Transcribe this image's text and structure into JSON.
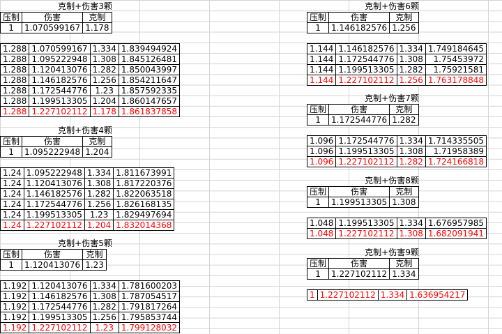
{
  "blocks": [
    {
      "title": "克制+伤害3颗",
      "headers": [
        "压制",
        "伤害",
        "克制"
      ],
      "first": [
        "1",
        "1.070599167",
        "1.178"
      ],
      "rows": [
        [
          "1.288",
          "1.070599167",
          "1.334",
          "1.839494924"
        ],
        [
          "1.288",
          "1.095222948",
          "1.308",
          "1.845126481"
        ],
        [
          "1.288",
          "1.120413076",
          "1.282",
          "1.850043997"
        ],
        [
          "1.288",
          "1.146182576",
          "1.256",
          "1.854211647"
        ],
        [
          "1.288",
          "1.172544776",
          "1.23",
          "1.857592335"
        ],
        [
          "1.288",
          "1.199513305",
          "1.204",
          "1.860147657"
        ],
        [
          "1.288",
          "1.227102112",
          "1.178",
          "1.861837858"
        ]
      ]
    },
    {
      "title": "克制+伤害4颗",
      "headers": [
        "压制",
        "伤害",
        "克制"
      ],
      "first": [
        "1",
        "1.095222948",
        "1.204"
      ],
      "rows": [
        [
          "1.24",
          "1.095222948",
          "1.334",
          "1.811673991"
        ],
        [
          "1.24",
          "1.120413076",
          "1.308",
          "1.817220376"
        ],
        [
          "1.24",
          "1.146182576",
          "1.282",
          "1.822063518"
        ],
        [
          "1.24",
          "1.172544776",
          "1.256",
          "1.826168135"
        ],
        [
          "1.24",
          "1.199513305",
          "1.23",
          "1.829497694"
        ],
        [
          "1.24",
          "1.227102112",
          "1.204",
          "1.832014368"
        ]
      ]
    },
    {
      "title": "克制+伤害5颗",
      "headers": [
        "压制",
        "伤害",
        "克制"
      ],
      "first": [
        "1",
        "1.120413076",
        "1.23"
      ],
      "rows": [
        [
          "1.192",
          "1.120413076",
          "1.334",
          "1.781600203"
        ],
        [
          "1.192",
          "1.146182576",
          "1.308",
          "1.787054517"
        ],
        [
          "1.192",
          "1.172544776",
          "1.282",
          "1.791817264"
        ],
        [
          "1.192",
          "1.199513305",
          "1.256",
          "1.795853744"
        ],
        [
          "1.192",
          "1.227102112",
          "1.23",
          "1.799128032"
        ]
      ]
    },
    {
      "title": "克制+伤害6颗",
      "headers": [
        "压制",
        "伤害",
        "克制"
      ],
      "first": [
        "1",
        "1.146182576",
        "1.256"
      ],
      "rows": [
        [
          "1.144",
          "1.146182576",
          "1.334",
          "1.749184645"
        ],
        [
          "1.144",
          "1.172544776",
          "1.308",
          "1.75453972"
        ],
        [
          "1.144",
          "1.199513305",
          "1.282",
          "1.75921581"
        ],
        [
          "1.144",
          "1.227102112",
          "1.256",
          "1.763178848"
        ]
      ]
    },
    {
      "title": "克制+伤害7颗",
      "headers": [
        "压制",
        "伤害",
        "克制"
      ],
      "first": [
        "1",
        "1.172544776",
        "1.282"
      ],
      "rows": [
        [
          "1.096",
          "1.172544776",
          "1.334",
          "1.714335505"
        ],
        [
          "1.096",
          "1.199513305",
          "1.308",
          "1.71958389"
        ],
        [
          "1.096",
          "1.227102112",
          "1.282",
          "1.724166818"
        ]
      ]
    },
    {
      "title": "克制+伤害8颗",
      "headers": [
        "压制",
        "伤害",
        "克制"
      ],
      "first": [
        "1",
        "1.199513305",
        "1.308"
      ],
      "rows": [
        [
          "1.048",
          "1.199513305",
          "1.334",
          "1.676957985"
        ],
        [
          "1.048",
          "1.227102112",
          "1.308",
          "1.682091941"
        ]
      ]
    },
    {
      "title": "克制+伤害9颗",
      "headers": [
        "压制",
        "伤害",
        "克制"
      ],
      "first": [
        "1",
        "1.227102112",
        "1.334"
      ],
      "rows": [
        [
          "1",
          "1.227102112",
          "1.334",
          "1.636954217"
        ]
      ]
    }
  ],
  "colors": {
    "highlight_row": "#ff0000",
    "gridline": "#d4d4d4"
  }
}
